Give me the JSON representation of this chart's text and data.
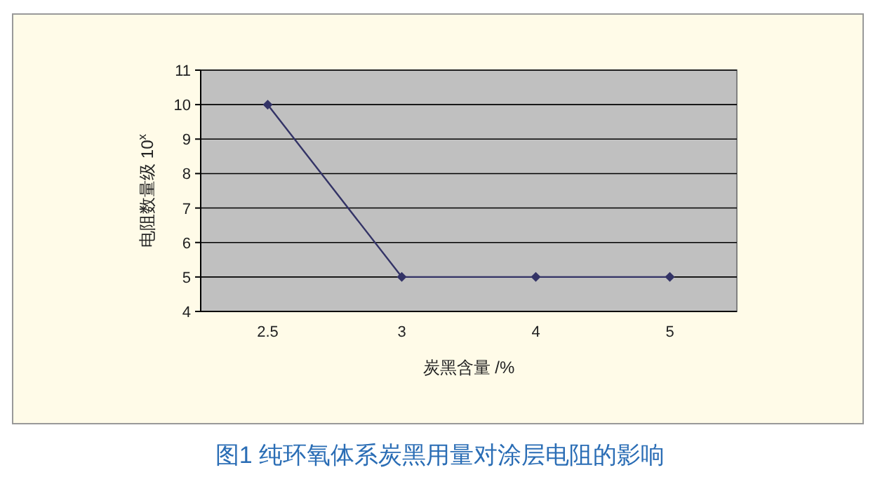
{
  "chart_data": {
    "type": "line",
    "title": "图1 纯环氧体系炭黑用量对涂层电阻的影响",
    "xlabel": "炭黑含量 /%",
    "ylabel": "电阻数量级 10$^{x}$",
    "categories": [
      "2.5",
      "3",
      "4",
      "5"
    ],
    "series": [
      {
        "color": "#333366",
        "values": [
          10,
          5,
          5,
          5
        ]
      }
    ],
    "ylim": [
      4,
      11
    ],
    "yticks": [
      4,
      5,
      6,
      7,
      8,
      9,
      10,
      11
    ],
    "grid": "y",
    "marker": "diamond",
    "line_style": "solid"
  }
}
